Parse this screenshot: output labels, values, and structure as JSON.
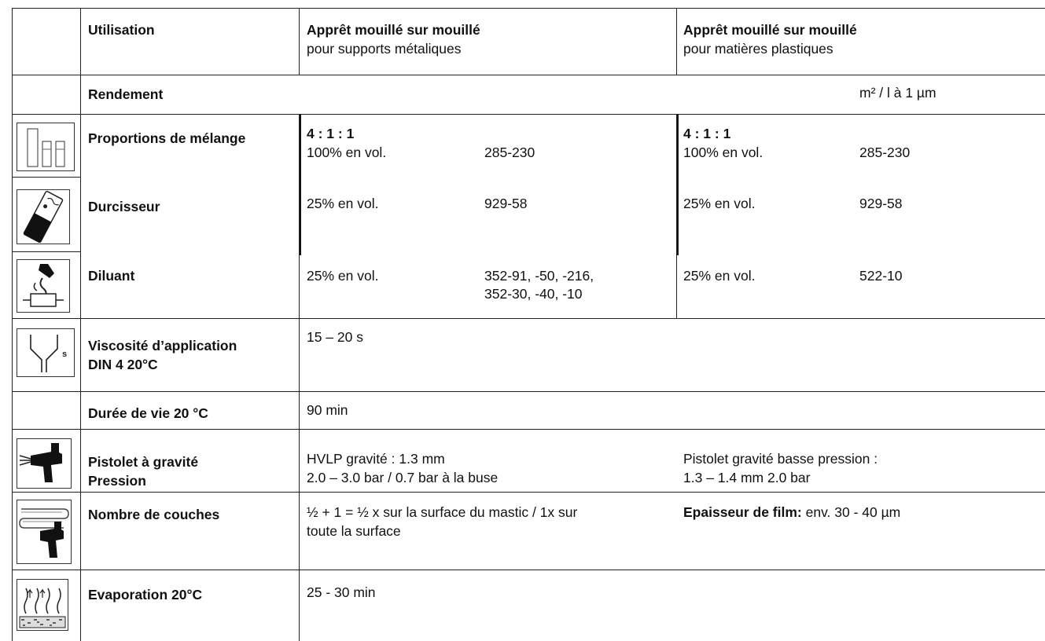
{
  "header": {
    "utilisation_label": "Utilisation",
    "col1_title": "Apprêt mouillé sur mouillé",
    "col1_subtitle": "pour supports métaliques",
    "col2_title": "Apprêt mouillé sur mouillé",
    "col2_subtitle": "pour matières plastiques"
  },
  "rendement": {
    "label": "Rendement",
    "unit": "m² / l à 1 µm"
  },
  "melange": {
    "label": "Proportions de mélange",
    "col1_ratio": "4 : 1 : 1",
    "col1_volume": "100% en vol.",
    "col1_ref": "285-230",
    "col2_ratio": "4 : 1 : 1",
    "col2_volume": "100% en vol.",
    "col2_ref": "285-230",
    "icon": "mixing-ratio-icon"
  },
  "durcisseur": {
    "label": "Durcisseur",
    "col1_volume": "25% en vol.",
    "col1_ref": "929-58",
    "col2_volume": "25% en vol.",
    "col2_ref": "929-58",
    "icon": "hardener-can-icon"
  },
  "diluant": {
    "label": "Diluant",
    "col1_volume": "25% en vol.",
    "col1_ref_line1": "352-91, -50, -216,",
    "col1_ref_line2": "352-30, -40, -10",
    "col2_volume": "25% en vol.",
    "col2_ref": "522-10",
    "icon": "thinner-pour-icon"
  },
  "viscosite": {
    "label_line1": "Viscosité d’application",
    "label_line2": "DIN 4 20°C",
    "value": "15 – 20 s",
    "icon": "viscosity-cup-icon"
  },
  "duree": {
    "label": "Durée de vie 20 °C",
    "value": "90 min"
  },
  "pistolet": {
    "label_line1": "Pistolet à gravité",
    "label_line2": "Pression",
    "col1_line1": "HVLP gravité : 1.3 mm",
    "col1_line2": "2.0 – 3.0 bar / 0.7 bar à la buse",
    "col2_line1": "Pistolet gravité basse pression :",
    "col2_line2": "1.3 – 1.4 mm 2.0 bar",
    "icon": "spray-gun-icon"
  },
  "couches": {
    "label": "Nombre de couches",
    "col1_line1": "½ + 1 = ½ x sur la surface du mastic / 1x sur",
    "col1_line2": "toute la surface",
    "film_label": "Epaisseur de film:",
    "film_value": " env. 30 - 40 µm",
    "icon": "spray-coats-icon"
  },
  "evaporation": {
    "label": "Evaporation 20°C",
    "value": "25 - 30 min",
    "icon": "evaporation-icon"
  }
}
